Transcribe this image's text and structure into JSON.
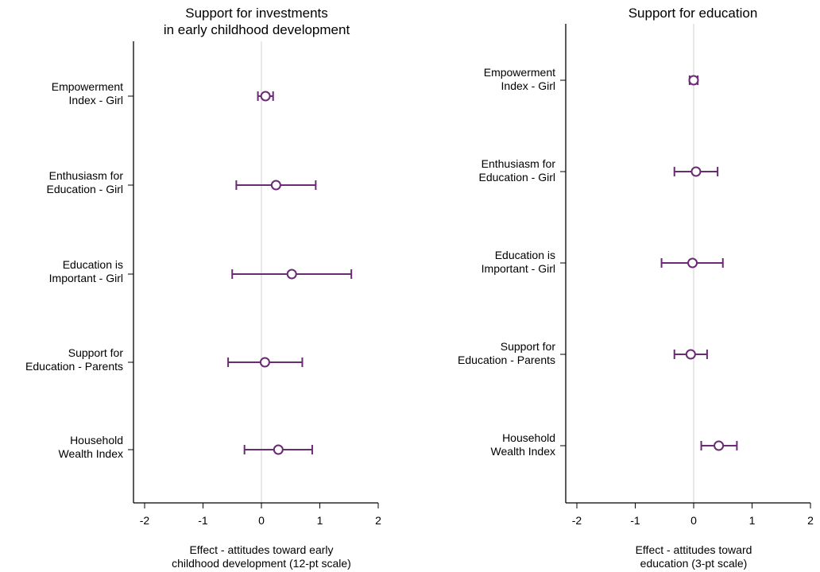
{
  "colors": {
    "marker": "#6a2a74",
    "axis": "#000000",
    "zero_line": "#d9d9d9"
  },
  "chart_data": [
    {
      "type": "scatter",
      "subtype": "coefficient-plot",
      "title_lines": [
        "Support for investments",
        "in early childhood development"
      ],
      "xlabel_lines": [
        "Effect - attitudes toward early",
        "childhood development (12-pt scale)"
      ],
      "xlim": [
        -2.1,
        2.1
      ],
      "xticks": [
        -2,
        -1,
        0,
        1,
        2
      ],
      "xtick_labels": [
        "-2",
        "-1",
        "0",
        "1",
        "2"
      ],
      "reference_line": 0,
      "grid": false,
      "points": [
        {
          "label_lines": [
            "Empowerment",
            "Index - Girl"
          ],
          "estimate": 0.07,
          "ci_low": -0.06,
          "ci_high": 0.2
        },
        {
          "label_lines": [
            "Enthusiasm for",
            "Education - Girl"
          ],
          "estimate": 0.25,
          "ci_low": -0.43,
          "ci_high": 0.93
        },
        {
          "label_lines": [
            "Education is",
            "Important - Girl"
          ],
          "estimate": 0.52,
          "ci_low": -0.5,
          "ci_high": 1.54
        },
        {
          "label_lines": [
            "Support for",
            "Education - Parents"
          ],
          "estimate": 0.06,
          "ci_low": -0.57,
          "ci_high": 0.7
        },
        {
          "label_lines": [
            "Household",
            "Wealth Index"
          ],
          "estimate": 0.29,
          "ci_low": -0.29,
          "ci_high": 0.87
        }
      ]
    },
    {
      "type": "scatter",
      "subtype": "coefficient-plot",
      "title_lines": [
        "Support for education"
      ],
      "xlabel_lines": [
        "Effect - attitudes toward",
        "education (3-pt scale)"
      ],
      "xlim": [
        -2.1,
        2.1
      ],
      "xticks": [
        -2,
        -1,
        0,
        1,
        2
      ],
      "xtick_labels": [
        "-2",
        "-1",
        "0",
        "1",
        "2"
      ],
      "reference_line": 0,
      "grid": false,
      "points": [
        {
          "label_lines": [
            "Empowerment",
            "Index - Girl"
          ],
          "estimate": 0.0,
          "ci_low": -0.07,
          "ci_high": 0.07
        },
        {
          "label_lines": [
            "Enthusiasm for",
            "Education - Girl"
          ],
          "estimate": 0.04,
          "ci_low": -0.33,
          "ci_high": 0.41
        },
        {
          "label_lines": [
            "Education is",
            "Important - Girl"
          ],
          "estimate": -0.02,
          "ci_low": -0.55,
          "ci_high": 0.5
        },
        {
          "label_lines": [
            "Support for",
            "Education - Parents"
          ],
          "estimate": -0.05,
          "ci_low": -0.33,
          "ci_high": 0.23
        },
        {
          "label_lines": [
            "Household",
            "Wealth Index"
          ],
          "estimate": 0.43,
          "ci_low": 0.13,
          "ci_high": 0.74
        }
      ]
    }
  ]
}
